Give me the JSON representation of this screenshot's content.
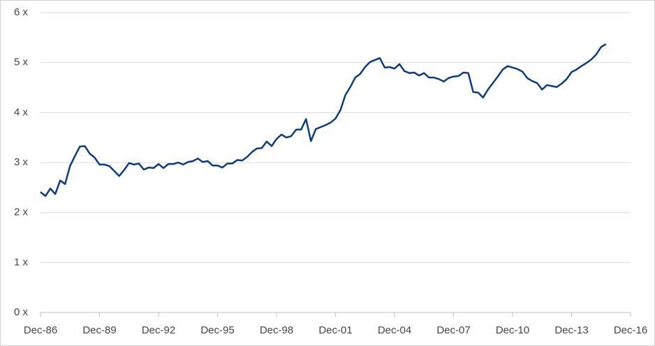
{
  "chart_data": {
    "type": "line",
    "categories": [
      "Dec-86",
      null,
      null,
      null,
      null,
      null,
      null,
      null,
      null,
      null,
      null,
      null,
      "Dec-89",
      null,
      null,
      null,
      null,
      null,
      null,
      null,
      null,
      null,
      null,
      null,
      "Dec-92",
      null,
      null,
      null,
      null,
      null,
      null,
      null,
      null,
      null,
      null,
      null,
      "Dec-95",
      null,
      null,
      null,
      null,
      null,
      null,
      null,
      null,
      null,
      null,
      null,
      "Dec-98",
      null,
      null,
      null,
      null,
      null,
      null,
      null,
      null,
      null,
      null,
      null,
      "Dec-01",
      null,
      null,
      null,
      null,
      null,
      null,
      null,
      null,
      null,
      null,
      null,
      "Dec-04",
      null,
      null,
      null,
      null,
      null,
      null,
      null,
      null,
      null,
      null,
      null,
      "Dec-07",
      null,
      null,
      null,
      null,
      null,
      null,
      null,
      null,
      null,
      null,
      null,
      "Dec-10",
      null,
      null,
      null,
      null,
      null,
      null,
      null,
      null,
      null,
      null,
      null,
      "Dec-13",
      null,
      null,
      null,
      null,
      null,
      null,
      null,
      null,
      null,
      null,
      null,
      "Dec-16"
    ],
    "values": [
      2.41,
      2.33,
      2.48,
      2.37,
      2.64,
      2.57,
      2.93,
      3.13,
      3.32,
      3.33,
      3.18,
      3.1,
      2.96,
      2.96,
      2.93,
      2.83,
      2.73,
      2.85,
      2.99,
      2.96,
      2.98,
      2.86,
      2.9,
      2.89,
      2.97,
      2.89,
      2.97,
      2.97,
      3.0,
      2.96,
      3.01,
      3.03,
      3.08,
      3.01,
      3.03,
      2.94,
      2.94,
      2.9,
      2.98,
      2.98,
      3.05,
      3.04,
      3.11,
      3.21,
      3.28,
      3.29,
      3.42,
      3.33,
      3.47,
      3.56,
      3.5,
      3.53,
      3.66,
      3.66,
      3.87,
      3.43,
      3.67,
      3.71,
      3.75,
      3.8,
      3.88,
      4.05,
      4.35,
      4.51,
      4.7,
      4.77,
      4.91,
      5.01,
      5.05,
      5.09,
      4.9,
      4.91,
      4.88,
      4.97,
      4.83,
      4.79,
      4.8,
      4.74,
      4.79,
      4.7,
      4.7,
      4.67,
      4.62,
      4.69,
      4.72,
      4.73,
      4.8,
      4.79,
      4.41,
      4.4,
      4.3,
      4.46,
      4.59,
      4.72,
      4.86,
      4.93,
      4.9,
      4.87,
      4.82,
      4.69,
      4.63,
      4.59,
      4.46,
      4.55,
      4.53,
      4.51,
      4.58,
      4.67,
      4.81,
      4.86,
      4.93,
      4.99,
      5.06,
      5.16,
      5.31,
      5.37,
      null,
      null,
      null,
      null,
      null
    ],
    "color": "#0d3b80",
    "ylim": [
      0,
      6
    ],
    "yticks": [
      {
        "value": 0,
        "label": "0 x"
      },
      {
        "value": 1,
        "label": "1 x"
      },
      {
        "value": 2,
        "label": "2 x"
      },
      {
        "value": 3,
        "label": "3 x"
      },
      {
        "value": 4,
        "label": "4 x"
      },
      {
        "value": 5,
        "label": "5 x"
      },
      {
        "value": 6,
        "label": "6 x"
      }
    ],
    "grid": true
  }
}
